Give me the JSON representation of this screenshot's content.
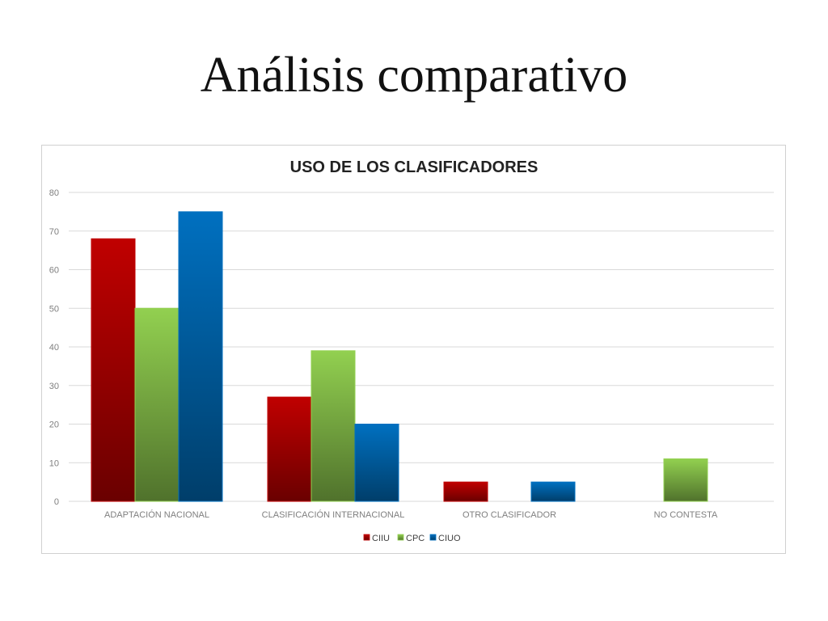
{
  "slide": {
    "title": "Análisis comparativo"
  },
  "colors": {
    "CIIU": "#c00000",
    "CPC": "#92d050",
    "CIUO": "#0070c0"
  },
  "chart_data": {
    "type": "bar",
    "title": "USO DE LOS CLASIFICADORES",
    "xlabel": "",
    "ylabel": "",
    "ylim": [
      0,
      80
    ],
    "yticks": [
      0,
      10,
      20,
      30,
      40,
      50,
      60,
      70,
      80
    ],
    "grid": true,
    "legend_position": "bottom",
    "categories": [
      "ADAPTACIÓN NACIONAL",
      "CLASIFICACIÓN INTERNACIONAL",
      "OTRO CLASIFICADOR",
      "NO CONTESTA"
    ],
    "series": [
      {
        "name": "CIIU",
        "values": [
          68,
          27,
          5,
          0
        ]
      },
      {
        "name": "CPC",
        "values": [
          50,
          39,
          0,
          11
        ]
      },
      {
        "name": "CIUO",
        "values": [
          75,
          20,
          5,
          0
        ]
      }
    ]
  }
}
